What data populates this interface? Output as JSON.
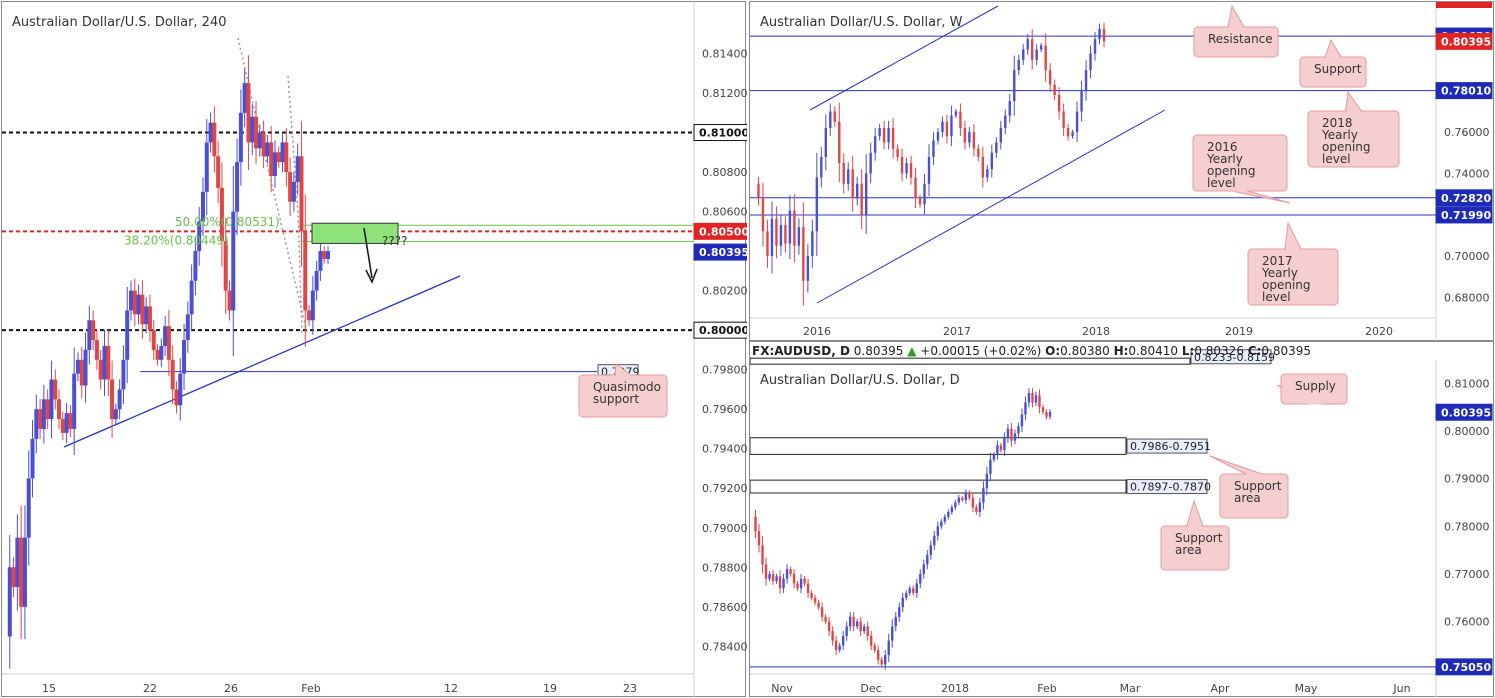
{
  "colors": {
    "bull": "#4a4fd6",
    "bear": "#e04646",
    "blue_line": "#2435c4",
    "callout_fill": "#f5cfd0",
    "callout_stroke": "#e69a9c",
    "fib_green": "#6cc04a",
    "zone_green": "#8ee27a",
    "dashed_red": "#e02424",
    "dashed_black": "#111111",
    "price_blue": "#1f2bb8",
    "price_red": "#e02424"
  },
  "chart_data": [
    {
      "id": "h4",
      "type": "candlestick",
      "title": "Australian Dollar/U.S. Dollar, 240",
      "ylim": [
        0.7826,
        0.8161
      ],
      "y_ticks": [
        "0.81400",
        "0.81200",
        "0.80800",
        "0.80600",
        "0.80200",
        "0.79800",
        "0.79600",
        "0.79400",
        "0.79200",
        "0.79000",
        "0.78800",
        "0.78600",
        "0.78400"
      ],
      "x_ticks": [
        "15",
        "22",
        "26",
        "Feb",
        "12",
        "19",
        "23"
      ],
      "price_labels": [
        {
          "value": 0.81,
          "text": "0.81000",
          "style": "black"
        },
        {
          "value": 0.805,
          "text": "0.80500",
          "style": "red"
        },
        {
          "value": 0.80395,
          "text": "0.80395",
          "style": "blue"
        },
        {
          "value": 0.8,
          "text": "0.80000",
          "style": "black"
        }
      ],
      "levels": {
        "dashed_black": [
          0.81,
          0.8
        ],
        "dashed_red": 0.805,
        "fib_50": 0.80531,
        "fib_382": 0.80449,
        "support": 0.7979
      },
      "fib_labels": [
        "50.00%(0.80531)",
        "38.20%(0.80449)"
      ],
      "annotations": {
        "question": "????",
        "level_label": "0.7979",
        "callout": "Quasimodo support"
      },
      "series_points": [
        0.7845,
        0.788,
        0.787,
        0.7895,
        0.786,
        0.7895,
        0.7925,
        0.7945,
        0.796,
        0.795,
        0.7965,
        0.7955,
        0.7975,
        0.7965,
        0.7955,
        0.7948,
        0.7958,
        0.795,
        0.7978,
        0.7985,
        0.7972,
        0.799,
        0.8005,
        0.7995,
        0.7985,
        0.7975,
        0.7992,
        0.7975,
        0.7955,
        0.796,
        0.797,
        0.7985,
        0.801,
        0.802,
        0.8008,
        0.8018,
        0.8003,
        0.8012,
        0.8,
        0.799,
        0.7985,
        0.7992,
        0.8002,
        0.7985,
        0.797,
        0.7962,
        0.7978,
        0.7995,
        0.8008,
        0.8025,
        0.804,
        0.8055,
        0.807,
        0.8095,
        0.8105,
        0.8088,
        0.8072,
        0.8045,
        0.802,
        0.801,
        0.806,
        0.8085,
        0.811,
        0.8125,
        0.8095,
        0.8108,
        0.8092,
        0.81,
        0.8088,
        0.8095,
        0.8078,
        0.809,
        0.8085,
        0.8095,
        0.808,
        0.8065,
        0.8075,
        0.8088,
        0.805,
        0.801,
        0.8005,
        0.802,
        0.803,
        0.804,
        0.8036,
        0.804
      ]
    },
    {
      "id": "weekly",
      "type": "candlestick",
      "title": "Australian Dollar/U.S. Dollar, W",
      "ylim": [
        0.67,
        0.823
      ],
      "y_ticks": [
        "0.76000",
        "0.74000",
        "0.70000",
        "0.68000"
      ],
      "x_ticks": [
        "2016",
        "2017",
        "2018",
        "2019",
        "2020"
      ],
      "price_labels": [
        {
          "value": 0.8065,
          "text": "0.80650",
          "style": "blue"
        },
        {
          "value": 0.80395,
          "text": "0.80395",
          "style": "red"
        },
        {
          "value": 0.7801,
          "text": "0.78010",
          "style": "blue"
        },
        {
          "value": 0.7282,
          "text": "0.72820",
          "style": "blue"
        },
        {
          "value": 0.7199,
          "text": "0.71990",
          "style": "blue"
        }
      ],
      "levels": [
        0.8065,
        0.7801,
        0.7282,
        0.7199
      ],
      "callouts": [
        "Resistance",
        "Support",
        "2018 Yearly opening level",
        "2016 Yearly opening level",
        "2017 Yearly opening level"
      ],
      "series_points": [
        0.735,
        0.728,
        0.712,
        0.7,
        0.718,
        0.705,
        0.715,
        0.706,
        0.722,
        0.705,
        0.714,
        0.688,
        0.7,
        0.712,
        0.738,
        0.748,
        0.762,
        0.77,
        0.765,
        0.745,
        0.735,
        0.742,
        0.728,
        0.735,
        0.72,
        0.74,
        0.75,
        0.758,
        0.762,
        0.755,
        0.762,
        0.752,
        0.748,
        0.74,
        0.745,
        0.738,
        0.728,
        0.725,
        0.735,
        0.748,
        0.756,
        0.76,
        0.765,
        0.758,
        0.768,
        0.77,
        0.762,
        0.755,
        0.76,
        0.752,
        0.748,
        0.738,
        0.742,
        0.75,
        0.755,
        0.762,
        0.768,
        0.775,
        0.79,
        0.795,
        0.8,
        0.805,
        0.795,
        0.8,
        0.802,
        0.79,
        0.783,
        0.778,
        0.77,
        0.762,
        0.758,
        0.76,
        0.77,
        0.78,
        0.79,
        0.798,
        0.805,
        0.81,
        0.804
      ]
    },
    {
      "id": "daily",
      "type": "candlestick",
      "title": "Australian Dollar/U.S. Dollar, D",
      "info_bar": {
        "symbol": "FX:AUDUSD, D",
        "last": "0.80395",
        "change": "+0.00015 (+0.02%)",
        "o_label": "O:",
        "o": "0.80380",
        "h_label": "H:",
        "h": "0.80410",
        "l_label": "L:",
        "l": "0.80326",
        "c_label": "C:",
        "c": "0.80395"
      },
      "ylim": [
        0.749,
        0.8145
      ],
      "y_ticks": [
        "0.81000",
        "0.80000",
        "0.79000",
        "0.78000",
        "0.77000",
        "0.76000"
      ],
      "x_ticks": [
        "Nov",
        "Dec",
        "2018",
        "Feb",
        "Mar",
        "Apr",
        "May",
        "Jun"
      ],
      "price_labels": [
        {
          "value": 0.80395,
          "text": "0.80395",
          "style": "blue"
        },
        {
          "value": 0.7505,
          "text": "0.75050",
          "style": "blue"
        }
      ],
      "zones": [
        {
          "label": "0.8233-0.8159",
          "top": 0.8233,
          "bottom": 0.8159
        },
        {
          "label": "0.7986-0.7951",
          "top": 0.7986,
          "bottom": 0.7951
        },
        {
          "label": "0.7897-0.7870",
          "top": 0.7897,
          "bottom": 0.787
        }
      ],
      "callouts": [
        "Supply",
        "Support area",
        "Support area"
      ],
      "series_points": [
        0.782,
        0.779,
        0.776,
        0.772,
        0.769,
        0.77,
        0.7685,
        0.7695,
        0.767,
        0.769,
        0.771,
        0.77,
        0.768,
        0.767,
        0.769,
        0.768,
        0.766,
        0.765,
        0.764,
        0.763,
        0.761,
        0.76,
        0.758,
        0.756,
        0.754,
        0.755,
        0.757,
        0.759,
        0.761,
        0.759,
        0.76,
        0.758,
        0.759,
        0.757,
        0.755,
        0.754,
        0.752,
        0.751,
        0.753,
        0.756,
        0.759,
        0.761,
        0.763,
        0.765,
        0.766,
        0.767,
        0.766,
        0.768,
        0.77,
        0.772,
        0.774,
        0.776,
        0.778,
        0.78,
        0.781,
        0.782,
        0.783,
        0.784,
        0.785,
        0.786,
        0.7855,
        0.787,
        0.786,
        0.784,
        0.783,
        0.785,
        0.788,
        0.791,
        0.794,
        0.795,
        0.797,
        0.796,
        0.7985,
        0.8005,
        0.798,
        0.7995,
        0.801,
        0.8035,
        0.806,
        0.808,
        0.806,
        0.8075,
        0.805,
        0.804,
        0.803,
        0.804
      ]
    }
  ]
}
